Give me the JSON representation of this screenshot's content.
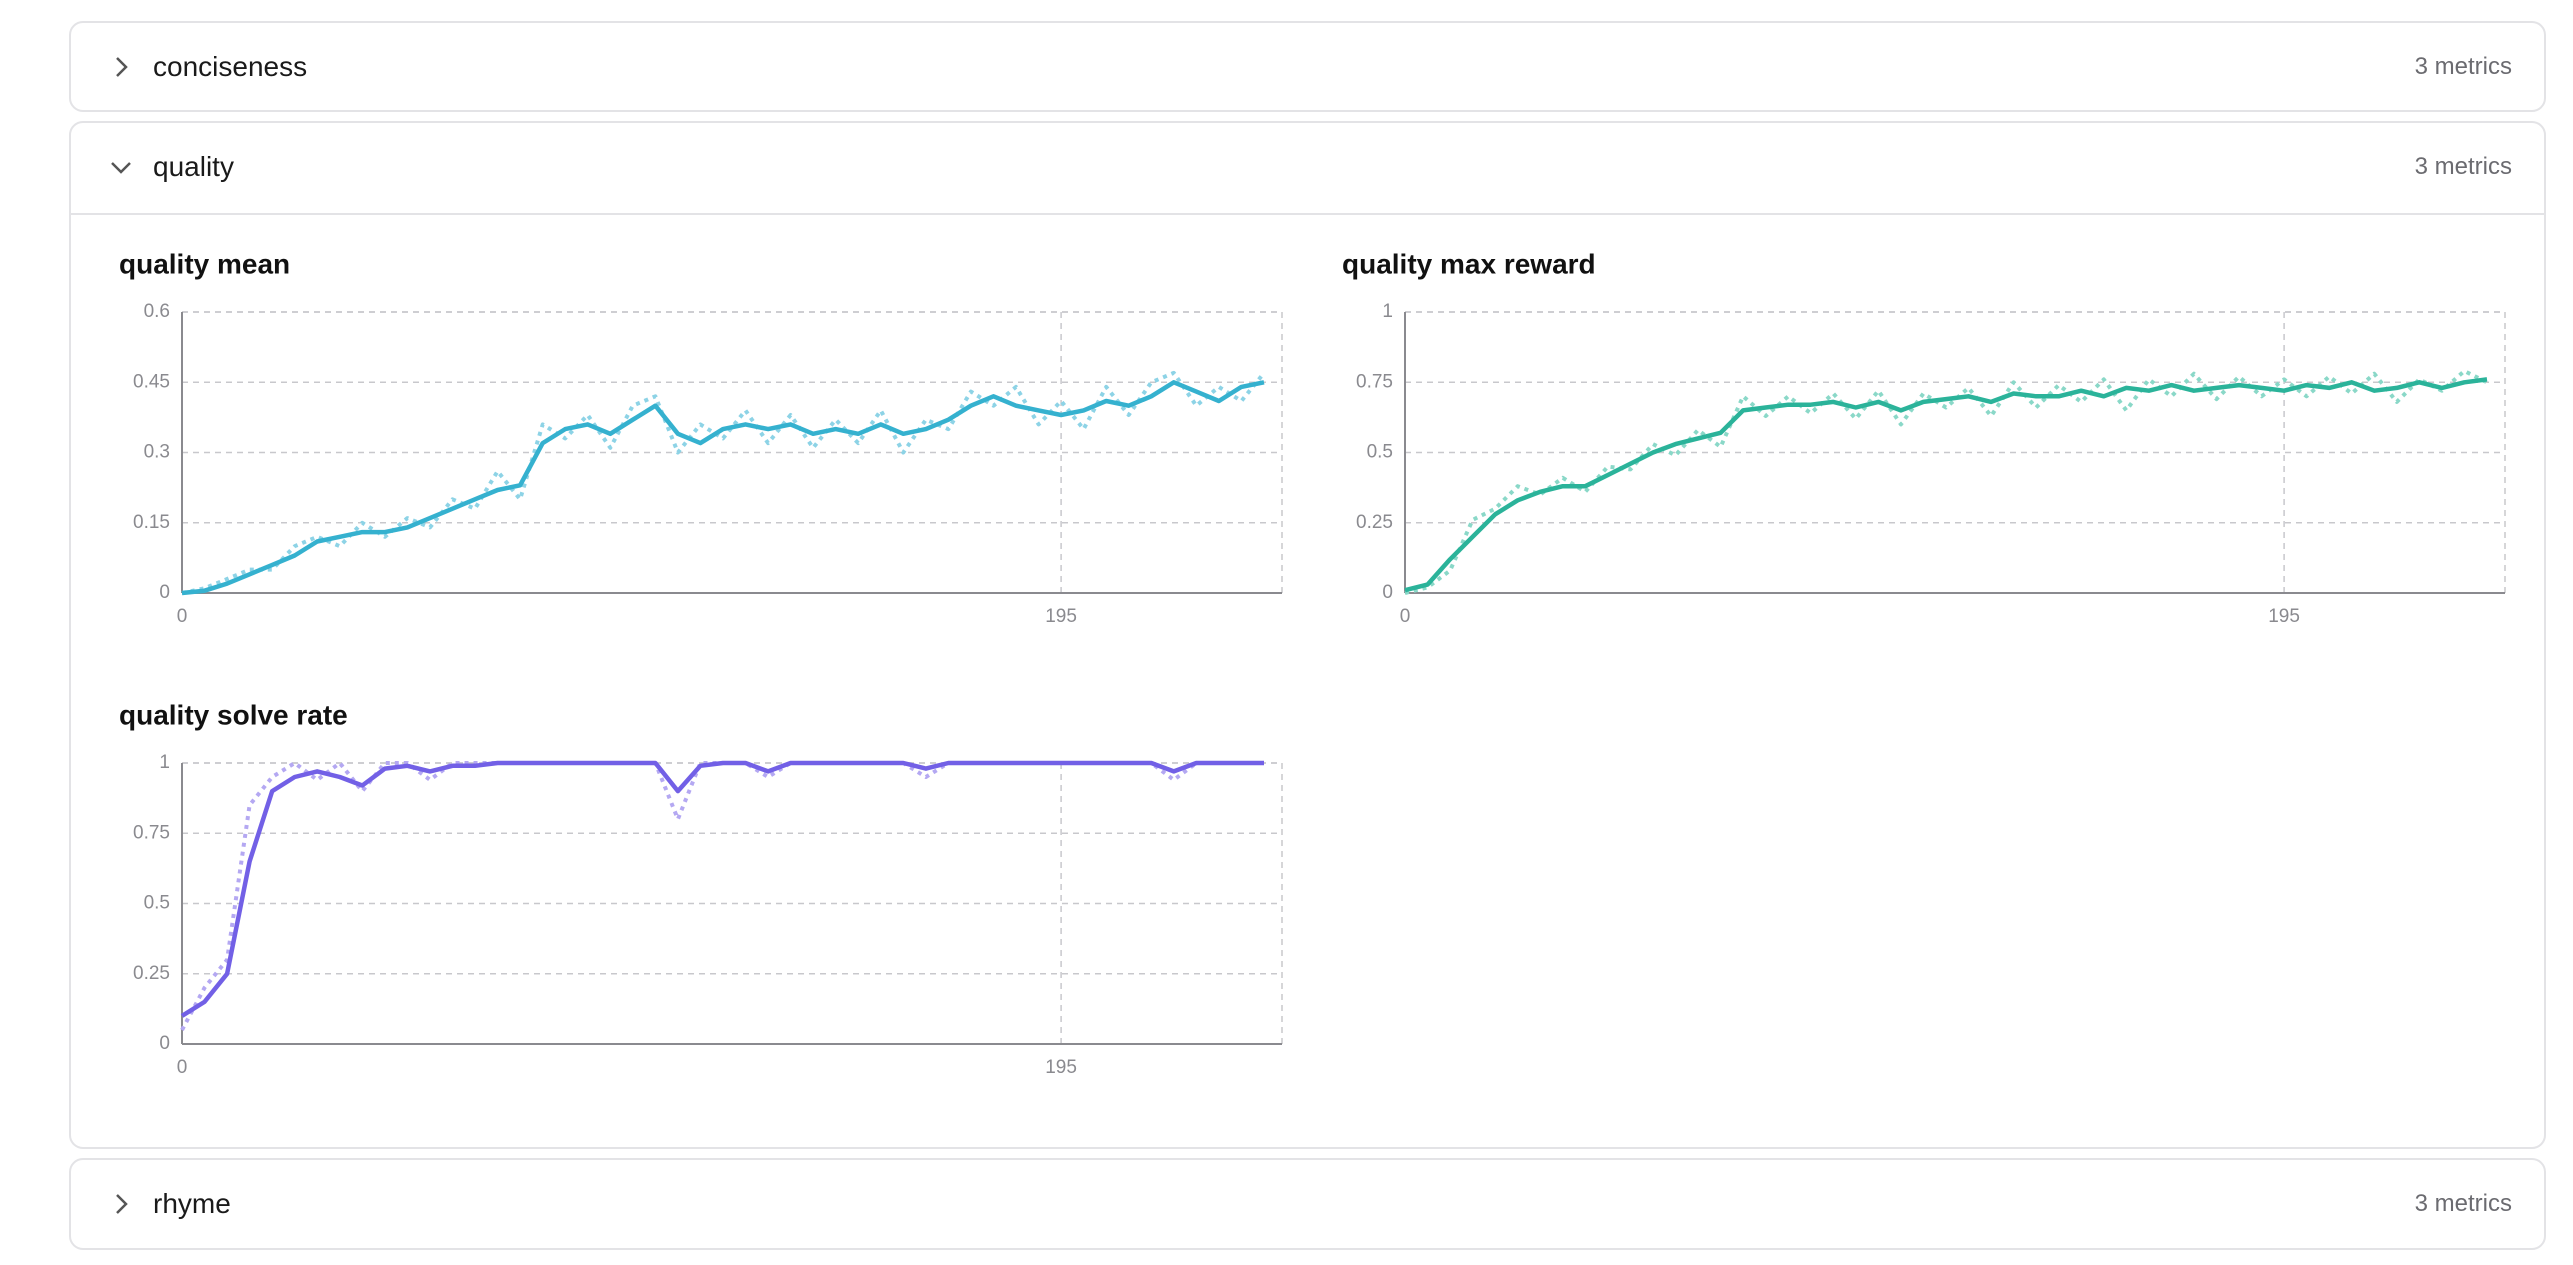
{
  "sections": [
    {
      "title": "conciseness",
      "count": "3 metrics"
    },
    {
      "title": "quality",
      "count": "3 metrics"
    },
    {
      "title": "rhyme",
      "count": "3 metrics"
    }
  ],
  "chart_data": [
    {
      "type": "line",
      "title": "quality mean",
      "x": [
        0,
        5,
        10,
        15,
        20,
        25,
        30,
        35,
        40,
        45,
        50,
        55,
        60,
        65,
        70,
        75,
        80,
        85,
        90,
        95,
        100,
        105,
        110,
        115,
        120,
        125,
        130,
        135,
        140,
        145,
        150,
        155,
        160,
        165,
        170,
        175,
        180,
        185,
        190,
        195,
        200,
        205,
        210,
        215,
        220,
        225,
        230,
        235,
        240
      ],
      "series": [
        {
          "color": "#8dd3e6",
          "style": "dotted",
          "values": [
            0,
            0.01,
            0.03,
            0.05,
            0.05,
            0.1,
            0.12,
            0.1,
            0.15,
            0.12,
            0.16,
            0.14,
            0.2,
            0.18,
            0.26,
            0.2,
            0.36,
            0.33,
            0.38,
            0.31,
            0.4,
            0.42,
            0.3,
            0.36,
            0.33,
            0.39,
            0.32,
            0.38,
            0.31,
            0.37,
            0.32,
            0.39,
            0.3,
            0.37,
            0.35,
            0.43,
            0.4,
            0.44,
            0.36,
            0.41,
            0.35,
            0.44,
            0.38,
            0.45,
            0.47,
            0.4,
            0.44,
            0.41,
            0.47
          ]
        },
        {
          "color": "#35b1cf",
          "style": "solid",
          "values": [
            0,
            0.005,
            0.02,
            0.04,
            0.06,
            0.08,
            0.11,
            0.12,
            0.13,
            0.13,
            0.14,
            0.16,
            0.18,
            0.2,
            0.22,
            0.23,
            0.32,
            0.35,
            0.36,
            0.34,
            0.37,
            0.4,
            0.34,
            0.32,
            0.35,
            0.36,
            0.35,
            0.36,
            0.34,
            0.35,
            0.34,
            0.36,
            0.34,
            0.35,
            0.37,
            0.4,
            0.42,
            0.4,
            0.39,
            0.38,
            0.39,
            0.41,
            0.4,
            0.42,
            0.45,
            0.43,
            0.41,
            0.44,
            0.45
          ]
        }
      ],
      "xlim": [
        0,
        244
      ],
      "ylim": [
        0,
        0.6
      ],
      "xticks": [
        0,
        195
      ],
      "yticks": [
        0,
        0.15,
        0.3,
        0.45,
        0.6
      ],
      "grid": true
    },
    {
      "type": "line",
      "title": "quality max reward",
      "x": [
        0,
        5,
        10,
        15,
        20,
        25,
        30,
        35,
        40,
        45,
        50,
        55,
        60,
        65,
        70,
        75,
        80,
        85,
        90,
        95,
        100,
        105,
        110,
        115,
        120,
        125,
        130,
        135,
        140,
        145,
        150,
        155,
        160,
        165,
        170,
        175,
        180,
        185,
        190,
        195,
        200,
        205,
        210,
        215,
        220,
        225,
        230,
        235,
        240
      ],
      "series": [
        {
          "color": "#8ad8c8",
          "style": "dotted",
          "values": [
            0,
            0.02,
            0.08,
            0.26,
            0.3,
            0.38,
            0.35,
            0.41,
            0.36,
            0.45,
            0.44,
            0.53,
            0.49,
            0.58,
            0.52,
            0.7,
            0.63,
            0.7,
            0.64,
            0.71,
            0.62,
            0.72,
            0.6,
            0.71,
            0.66,
            0.73,
            0.63,
            0.75,
            0.66,
            0.74,
            0.68,
            0.76,
            0.65,
            0.76,
            0.7,
            0.78,
            0.69,
            0.77,
            0.7,
            0.76,
            0.7,
            0.77,
            0.71,
            0.78,
            0.68,
            0.76,
            0.72,
            0.79,
            0.75
          ]
        },
        {
          "color": "#2bb39a",
          "style": "solid",
          "values": [
            0.01,
            0.03,
            0.12,
            0.2,
            0.28,
            0.33,
            0.36,
            0.38,
            0.38,
            0.42,
            0.46,
            0.5,
            0.53,
            0.55,
            0.57,
            0.65,
            0.66,
            0.67,
            0.67,
            0.68,
            0.66,
            0.68,
            0.65,
            0.68,
            0.69,
            0.7,
            0.68,
            0.71,
            0.7,
            0.7,
            0.72,
            0.7,
            0.73,
            0.72,
            0.74,
            0.72,
            0.73,
            0.74,
            0.73,
            0.72,
            0.74,
            0.73,
            0.75,
            0.72,
            0.73,
            0.75,
            0.73,
            0.75,
            0.76
          ]
        }
      ],
      "xlim": [
        0,
        244
      ],
      "ylim": [
        0,
        1
      ],
      "xticks": [
        0,
        195
      ],
      "yticks": [
        0,
        0.25,
        0.5,
        0.75,
        1
      ],
      "grid": true
    },
    {
      "type": "line",
      "title": "quality solve rate",
      "x": [
        0,
        5,
        10,
        15,
        20,
        25,
        30,
        35,
        40,
        45,
        50,
        55,
        60,
        65,
        70,
        75,
        80,
        85,
        90,
        95,
        100,
        105,
        110,
        115,
        120,
        125,
        130,
        135,
        140,
        145,
        150,
        155,
        160,
        165,
        170,
        175,
        180,
        185,
        190,
        195,
        200,
        205,
        210,
        215,
        220,
        225,
        230,
        235,
        240
      ],
      "series": [
        {
          "color": "#b4a8f2",
          "style": "dotted",
          "values": [
            0.05,
            0.2,
            0.3,
            0.85,
            0.95,
            1,
            0.94,
            1,
            0.9,
            1,
            1,
            0.94,
            1,
            1,
            1,
            1,
            1,
            1,
            1,
            1,
            1,
            1,
            0.8,
            1,
            1,
            1,
            0.95,
            1,
            1,
            1,
            1,
            1,
            1,
            0.95,
            1,
            1,
            1,
            1,
            1,
            1,
            1,
            1,
            1,
            1,
            0.94,
            1,
            1,
            1,
            1
          ]
        },
        {
          "color": "#7260e6",
          "style": "solid",
          "values": [
            0.1,
            0.15,
            0.25,
            0.65,
            0.9,
            0.95,
            0.97,
            0.95,
            0.92,
            0.98,
            0.99,
            0.97,
            0.99,
            0.99,
            1,
            1,
            1,
            1,
            1,
            1,
            1,
            1,
            0.9,
            0.99,
            1,
            1,
            0.97,
            1,
            1,
            1,
            1,
            1,
            1,
            0.98,
            1,
            1,
            1,
            1,
            1,
            1,
            1,
            1,
            1,
            1,
            0.97,
            1,
            1,
            1,
            1
          ]
        }
      ],
      "xlim": [
        0,
        244
      ],
      "ylim": [
        0,
        1
      ],
      "xticks": [
        0,
        195
      ],
      "yticks": [
        0,
        0.25,
        0.5,
        0.75,
        1
      ],
      "grid": true
    }
  ]
}
